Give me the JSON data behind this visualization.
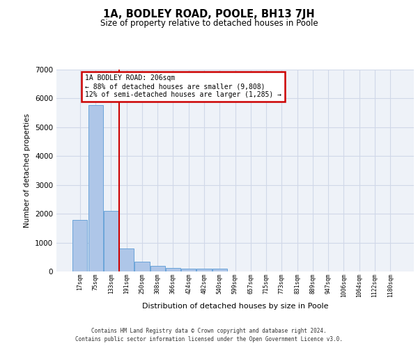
{
  "title": "1A, BODLEY ROAD, POOLE, BH13 7JH",
  "subtitle": "Size of property relative to detached houses in Poole",
  "xlabel": "Distribution of detached houses by size in Poole",
  "ylabel": "Number of detached properties",
  "bar_values": [
    1780,
    5780,
    2090,
    800,
    340,
    190,
    120,
    100,
    90,
    90,
    0,
    0,
    0,
    0,
    0,
    0,
    0,
    0,
    0,
    0,
    0
  ],
  "bar_labels": [
    "17sqm",
    "75sqm",
    "133sqm",
    "191sqm",
    "250sqm",
    "308sqm",
    "366sqm",
    "424sqm",
    "482sqm",
    "540sqm",
    "599sqm",
    "657sqm",
    "715sqm",
    "773sqm",
    "831sqm",
    "889sqm",
    "947sqm",
    "1006sqm",
    "1064sqm",
    "1122sqm",
    "1180sqm"
  ],
  "bar_color": "#aec6e8",
  "bar_edge_color": "#5b9bd5",
  "red_line_x": 2.5,
  "annotation_text": "1A BODLEY ROAD: 206sqm\n← 88% of detached houses are smaller (9,808)\n12% of semi-detached houses are larger (1,285) →",
  "annotation_box_color": "#ffffff",
  "annotation_border_color": "#cc0000",
  "ylim": [
    0,
    7000
  ],
  "yticks": [
    0,
    1000,
    2000,
    3000,
    4000,
    5000,
    6000,
    7000
  ],
  "grid_color": "#d0d8e8",
  "background_color": "#eef2f8",
  "footer_line1": "Contains HM Land Registry data © Crown copyright and database right 2024.",
  "footer_line2": "Contains public sector information licensed under the Open Government Licence v3.0."
}
